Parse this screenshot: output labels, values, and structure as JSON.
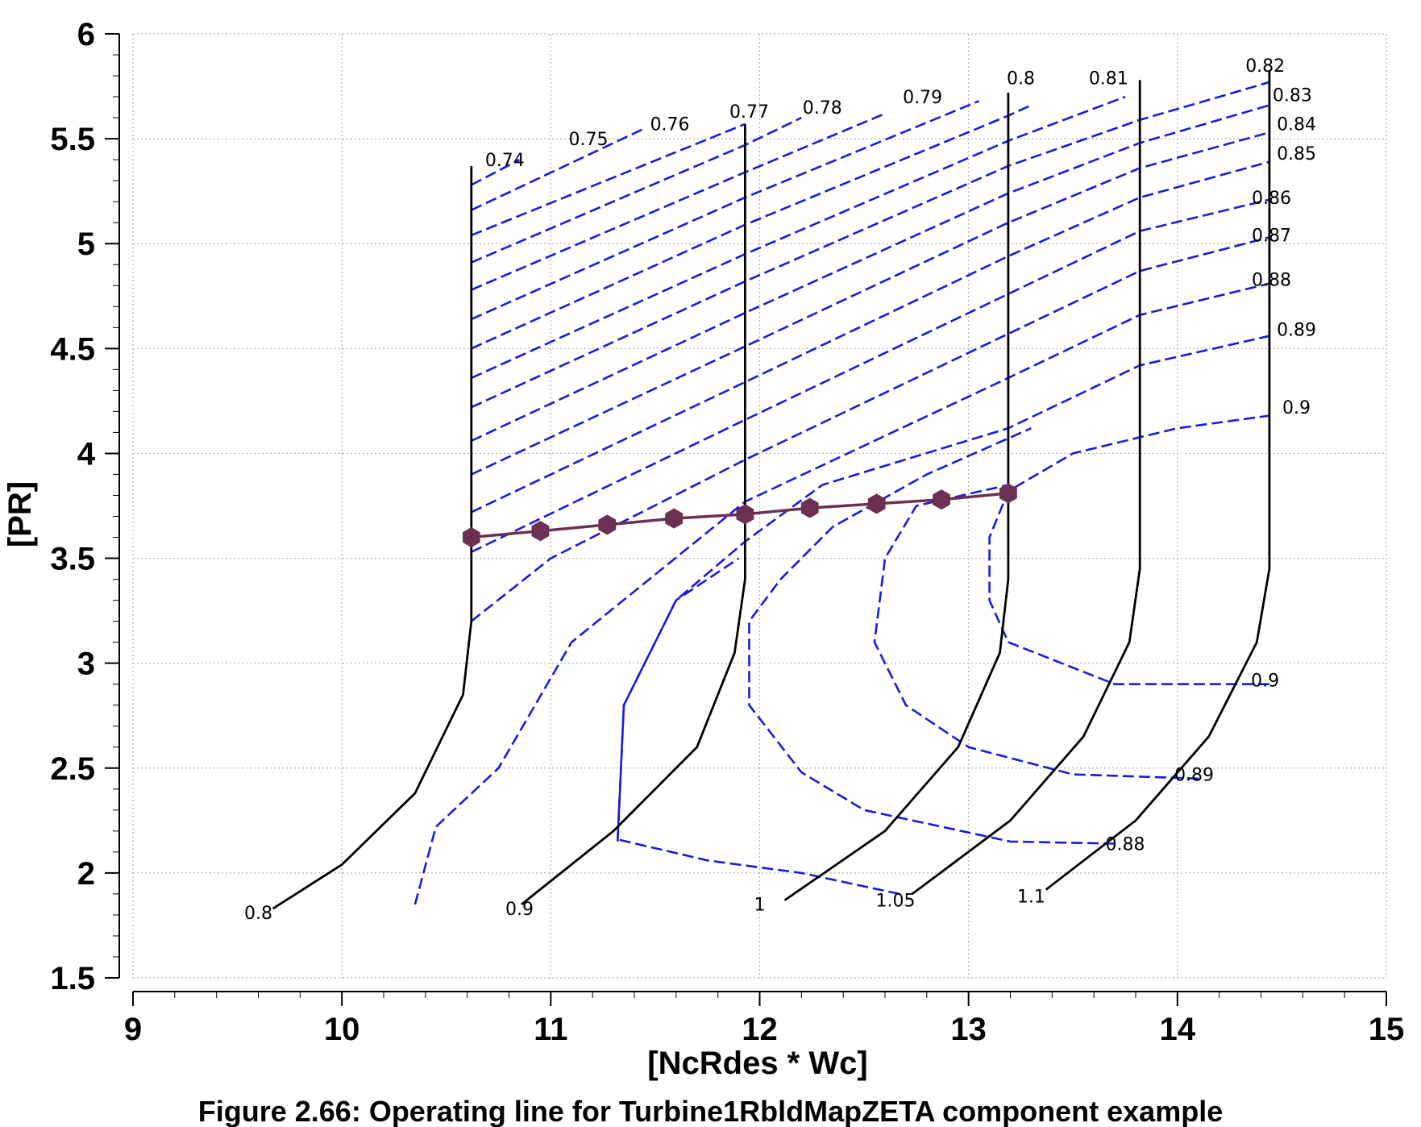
{
  "chart_data": {
    "type": "line",
    "title": "",
    "xlabel": "[NcRdes * Wc]",
    "ylabel": "[PR]",
    "xlim": [
      9,
      15
    ],
    "ylim": [
      1.5,
      6
    ],
    "x_ticks": [
      "9",
      "10",
      "11",
      "12",
      "13",
      "14",
      "15"
    ],
    "y_ticks": [
      "1.5",
      "2",
      "2.5",
      "3",
      "3.5",
      "4",
      "4.5",
      "5",
      "5.5",
      "6"
    ],
    "grid": true,
    "speed_lines": [
      {
        "label": "0.8",
        "points": [
          [
            9.67,
            1.83
          ],
          [
            10.0,
            2.04
          ],
          [
            10.35,
            2.38
          ],
          [
            10.58,
            2.85
          ],
          [
            10.62,
            3.2
          ],
          [
            10.62,
            5.37
          ]
        ]
      },
      {
        "label": "0.9",
        "points": [
          [
            10.86,
            1.85
          ],
          [
            11.3,
            2.2
          ],
          [
            11.7,
            2.6
          ],
          [
            11.88,
            3.05
          ],
          [
            11.93,
            3.4
          ],
          [
            11.93,
            5.57
          ]
        ]
      },
      {
        "label": "1",
        "points": [
          [
            12.12,
            1.87
          ],
          [
            12.6,
            2.2
          ],
          [
            12.95,
            2.6
          ],
          [
            13.15,
            3.05
          ],
          [
            13.19,
            3.4
          ],
          [
            13.19,
            5.72
          ]
        ]
      },
      {
        "label": "1.05",
        "points": [
          [
            12.73,
            1.9
          ],
          [
            13.2,
            2.25
          ],
          [
            13.55,
            2.65
          ],
          [
            13.77,
            3.1
          ],
          [
            13.82,
            3.45
          ],
          [
            13.82,
            5.78
          ]
        ]
      },
      {
        "label": "1.1",
        "points": [
          [
            13.37,
            1.92
          ],
          [
            13.8,
            2.25
          ],
          [
            14.15,
            2.65
          ],
          [
            14.38,
            3.1
          ],
          [
            14.44,
            3.45
          ],
          [
            14.44,
            5.82
          ]
        ]
      }
    ],
    "speed_labels": [
      {
        "text": "0.8",
        "x": 9.6,
        "y": 1.78
      },
      {
        "text": "0.9",
        "x": 10.85,
        "y": 1.8
      },
      {
        "text": "1",
        "x": 12.0,
        "y": 1.82
      },
      {
        "text": "1.05",
        "x": 12.65,
        "y": 1.84
      },
      {
        "text": "1.1",
        "x": 13.3,
        "y": 1.86
      }
    ],
    "efficiency_lines": [
      {
        "label": "0.74",
        "points": [
          [
            10.62,
            5.28
          ],
          [
            10.85,
            5.4
          ]
        ]
      },
      {
        "label": "0.75",
        "points": [
          [
            10.62,
            5.16
          ],
          [
            11.45,
            5.55
          ]
        ]
      },
      {
        "label": "0.76",
        "points": [
          [
            10.62,
            5.04
          ],
          [
            11.93,
            5.57
          ]
        ]
      },
      {
        "label": "0.77",
        "points": [
          [
            10.62,
            4.91
          ],
          [
            11.93,
            5.47
          ],
          [
            12.2,
            5.6
          ]
        ]
      },
      {
        "label": "0.78",
        "points": [
          [
            10.62,
            4.78
          ],
          [
            11.93,
            5.34
          ],
          [
            12.6,
            5.62
          ]
        ]
      },
      {
        "label": "0.79",
        "points": [
          [
            10.62,
            4.64
          ],
          [
            11.93,
            5.22
          ],
          [
            13.05,
            5.68
          ]
        ]
      },
      {
        "label": "0.8",
        "points": [
          [
            10.62,
            4.5
          ],
          [
            11.93,
            5.09
          ],
          [
            13.19,
            5.61
          ],
          [
            13.3,
            5.66
          ]
        ]
      },
      {
        "label": "0.81",
        "points": [
          [
            10.62,
            4.36
          ],
          [
            11.93,
            4.95
          ],
          [
            13.19,
            5.49
          ],
          [
            13.75,
            5.7
          ]
        ]
      },
      {
        "label": "0.82",
        "points": [
          [
            10.62,
            4.22
          ],
          [
            11.93,
            4.82
          ],
          [
            13.19,
            5.37
          ],
          [
            13.82,
            5.59
          ],
          [
            14.2,
            5.7
          ],
          [
            14.44,
            5.77
          ]
        ]
      },
      {
        "label": "0.83",
        "points": [
          [
            10.62,
            4.06
          ],
          [
            11.93,
            4.67
          ],
          [
            13.19,
            5.24
          ],
          [
            13.82,
            5.48
          ],
          [
            14.44,
            5.66
          ]
        ]
      },
      {
        "label": "0.84",
        "points": [
          [
            10.62,
            3.9
          ],
          [
            11.93,
            4.51
          ],
          [
            13.19,
            5.1
          ],
          [
            13.82,
            5.36
          ],
          [
            14.44,
            5.53
          ]
        ]
      },
      {
        "label": "0.85",
        "points": [
          [
            10.62,
            3.72
          ],
          [
            11.93,
            4.34
          ],
          [
            13.19,
            4.94
          ],
          [
            13.82,
            5.22
          ],
          [
            14.44,
            5.39
          ]
        ]
      },
      {
        "label": "0.86",
        "points": [
          [
            10.62,
            3.53
          ],
          [
            11.93,
            4.16
          ],
          [
            13.19,
            4.76
          ],
          [
            13.82,
            5.06
          ],
          [
            14.44,
            5.21
          ]
        ]
      },
      {
        "label": "0.87",
        "points": [
          [
            10.62,
            3.2
          ],
          [
            11.0,
            3.5
          ],
          [
            11.93,
            3.97
          ],
          [
            13.19,
            4.57
          ],
          [
            13.82,
            4.87
          ],
          [
            14.44,
            5.03
          ]
        ]
      },
      {
        "label": "0.88",
        "points": [
          [
            10.35,
            1.85
          ],
          [
            10.45,
            2.22
          ],
          [
            10.75,
            2.5
          ],
          [
            11.1,
            3.1
          ],
          [
            11.93,
            3.77
          ],
          [
            13.19,
            4.36
          ],
          [
            13.82,
            4.66
          ],
          [
            14.44,
            4.81
          ]
        ]
      },
      {
        "label": "0.89",
        "points": [
          [
            11.32,
            2.15
          ],
          [
            11.35,
            2.8
          ],
          [
            11.6,
            3.3
          ],
          [
            11.93,
            3.58
          ],
          [
            12.3,
            3.85
          ],
          [
            13.19,
            4.12
          ],
          [
            13.82,
            4.42
          ],
          [
            14.44,
            4.56
          ]
        ]
      },
      {
        "label": "0.9",
        "points": [
          [
            12.67,
            1.9
          ],
          [
            12.2,
            2.0
          ],
          [
            11.75,
            2.06
          ],
          [
            11.32,
            2.16
          ],
          [
            11.35,
            2.8
          ],
          [
            11.6,
            3.3
          ],
          [
            11.9,
            3.5
          ]
        ]
      },
      {
        "label": "0.9",
        "points": [
          [
            14.44,
            2.9
          ],
          [
            13.7,
            2.9
          ],
          [
            13.19,
            3.1
          ],
          [
            13.1,
            3.3
          ],
          [
            13.1,
            3.6
          ],
          [
            13.19,
            3.82
          ],
          [
            13.5,
            4.0
          ],
          [
            14.0,
            4.12
          ],
          [
            14.44,
            4.18
          ]
        ]
      },
      {
        "label": "0.89",
        "points": [
          [
            14.1,
            2.45
          ],
          [
            13.5,
            2.47
          ],
          [
            13.0,
            2.6
          ],
          [
            12.7,
            2.8
          ],
          [
            12.55,
            3.1
          ],
          [
            12.6,
            3.5
          ],
          [
            12.75,
            3.75
          ],
          [
            13.19,
            3.85
          ]
        ]
      },
      {
        "label": "0.88",
        "points": [
          [
            13.7,
            2.14
          ],
          [
            13.2,
            2.15
          ],
          [
            12.5,
            2.3
          ],
          [
            12.2,
            2.48
          ],
          [
            11.95,
            2.8
          ],
          [
            11.95,
            3.2
          ],
          [
            12.1,
            3.4
          ],
          [
            12.35,
            3.65
          ],
          [
            12.8,
            3.9
          ],
          [
            13.3,
            4.12
          ]
        ]
      }
    ],
    "efficiency_labels": [
      {
        "text": "0.74",
        "x": 10.78,
        "y": 5.37
      },
      {
        "text": "0.75",
        "x": 11.18,
        "y": 5.47
      },
      {
        "text": "0.76",
        "x": 11.57,
        "y": 5.54
      },
      {
        "text": "0.77",
        "x": 11.95,
        "y": 5.6
      },
      {
        "text": "0.78",
        "x": 12.3,
        "y": 5.62
      },
      {
        "text": "0.79",
        "x": 12.78,
        "y": 5.67
      },
      {
        "text": "0.8",
        "x": 13.25,
        "y": 5.76
      },
      {
        "text": "0.81",
        "x": 13.67,
        "y": 5.76
      },
      {
        "text": "0.82",
        "x": 14.42,
        "y": 5.82
      },
      {
        "text": "0.83",
        "x": 14.55,
        "y": 5.68
      },
      {
        "text": "0.84",
        "x": 14.57,
        "y": 5.54
      },
      {
        "text": "0.85",
        "x": 14.57,
        "y": 5.4
      },
      {
        "text": "0.86",
        "x": 14.45,
        "y": 5.19
      },
      {
        "text": "0.87",
        "x": 14.45,
        "y": 5.01
      },
      {
        "text": "0.88",
        "x": 14.45,
        "y": 4.8
      },
      {
        "text": "0.89",
        "x": 14.57,
        "y": 4.56
      },
      {
        "text": "0.9",
        "x": 14.57,
        "y": 4.19
      },
      {
        "text": "0.9",
        "x": 14.42,
        "y": 2.89
      },
      {
        "text": "0.89",
        "x": 14.08,
        "y": 2.44
      },
      {
        "text": "0.88",
        "x": 13.75,
        "y": 2.11
      }
    ],
    "operating_line": {
      "x": [
        10.62,
        10.95,
        11.27,
        11.59,
        11.93,
        12.24,
        12.56,
        12.87,
        13.19
      ],
      "y": [
        3.6,
        3.63,
        3.66,
        3.69,
        3.71,
        3.74,
        3.76,
        3.78,
        3.81
      ]
    },
    "colors": {
      "speed": "#000000",
      "efficiency": "#1a1adb",
      "operating": "#6b3052",
      "grid": "#b0b0b0"
    }
  },
  "caption": "Figure 2.66: Operating line for Turbine1RbldMapZETA component example"
}
